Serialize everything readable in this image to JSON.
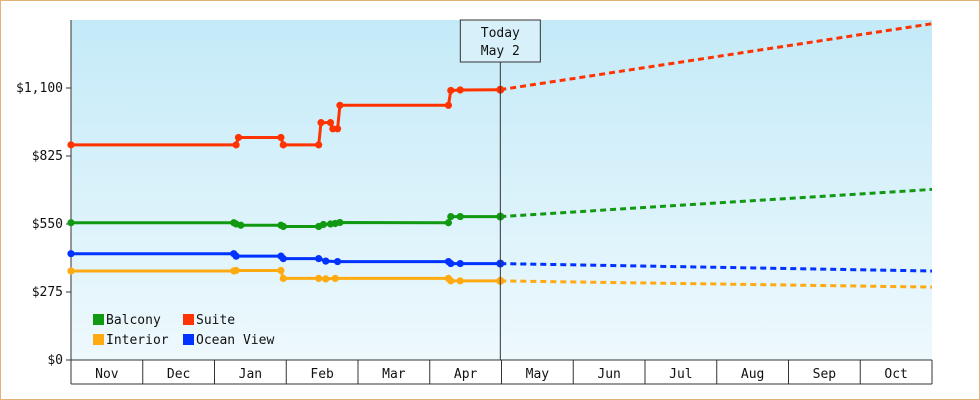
{
  "chart_data": {
    "type": "line",
    "today_label": [
      "Today",
      "May 2"
    ],
    "y_ticks": [
      "$0",
      "$275",
      "$550",
      "$825",
      "$1,100"
    ],
    "ylim": [
      0,
      1375
    ],
    "x_months": [
      "Nov",
      "Dec",
      "Jan",
      "Feb",
      "Mar",
      "Apr",
      "May",
      "Jun",
      "Jul",
      "Aug",
      "Sep",
      "Oct"
    ],
    "x_domain_days": [
      0,
      365
    ],
    "today_day": 182,
    "legend": {
      "placement": "bottom-left"
    },
    "series": [
      {
        "name": "Suite",
        "color": "#ff3300",
        "history": [
          [
            0,
            870
          ],
          [
            70,
            870
          ],
          [
            71,
            900
          ],
          [
            89,
            900
          ],
          [
            90,
            870
          ],
          [
            105,
            870
          ],
          [
            106,
            960
          ],
          [
            110,
            960
          ],
          [
            111,
            935
          ],
          [
            113,
            935
          ],
          [
            114,
            1030
          ],
          [
            160,
            1030
          ],
          [
            161,
            1090
          ],
          [
            165,
            1092
          ],
          [
            182,
            1093
          ]
        ],
        "forecast": [
          [
            182,
            1093
          ],
          [
            365,
            1360
          ]
        ]
      },
      {
        "name": "Balcony",
        "color": "#119911",
        "history": [
          [
            0,
            555
          ],
          [
            69,
            555
          ],
          [
            70,
            550
          ],
          [
            72,
            545
          ],
          [
            89,
            545
          ],
          [
            90,
            540
          ],
          [
            105,
            540
          ],
          [
            107,
            548
          ],
          [
            110,
            550
          ],
          [
            112,
            552
          ],
          [
            114,
            556
          ],
          [
            160,
            555
          ],
          [
            161,
            580
          ],
          [
            165,
            580
          ],
          [
            182,
            580
          ]
        ],
        "forecast": [
          [
            182,
            580
          ],
          [
            365,
            690
          ]
        ]
      },
      {
        "name": "Ocean View",
        "color": "#0033ff",
        "history": [
          [
            0,
            430
          ],
          [
            69,
            430
          ],
          [
            70,
            420
          ],
          [
            89,
            420
          ],
          [
            90,
            410
          ],
          [
            105,
            410
          ],
          [
            108,
            400
          ],
          [
            113,
            398
          ],
          [
            160,
            398
          ],
          [
            161,
            390
          ],
          [
            165,
            390
          ],
          [
            182,
            390
          ]
        ],
        "forecast": [
          [
            182,
            390
          ],
          [
            365,
            360
          ]
        ]
      },
      {
        "name": "Interior",
        "color": "#ffaa11",
        "history": [
          [
            0,
            360
          ],
          [
            69,
            360
          ],
          [
            70,
            362
          ],
          [
            89,
            362
          ],
          [
            90,
            330
          ],
          [
            105,
            330
          ],
          [
            108,
            328
          ],
          [
            112,
            330
          ],
          [
            160,
            330
          ],
          [
            161,
            320
          ],
          [
            165,
            320
          ],
          [
            182,
            320
          ]
        ],
        "forecast": [
          [
            182,
            320
          ],
          [
            365,
            295
          ]
        ]
      }
    ]
  }
}
